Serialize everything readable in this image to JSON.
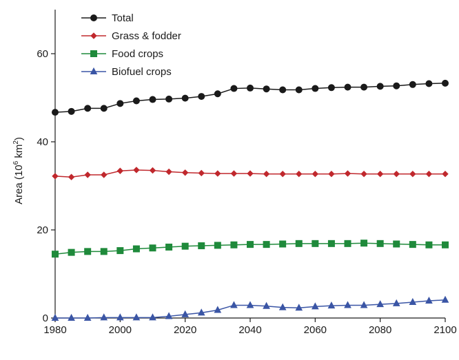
{
  "chart_data": {
    "type": "line",
    "title": "",
    "xlabel": "",
    "ylabel": {
      "prefix": "Area (10",
      "sup1": "6",
      "mid": " km",
      "sup2": "2",
      "suffix": ")"
    },
    "xlim": [
      1980,
      2100
    ],
    "ylim": [
      0,
      70
    ],
    "xticks": [
      "1980",
      "2000",
      "2020",
      "2040",
      "2060",
      "2080",
      "2100"
    ],
    "yticks": [
      "0",
      "20",
      "40",
      "60"
    ],
    "grid": false,
    "legend_position": "top-left",
    "x": [
      1980,
      1985,
      1990,
      1995,
      2000,
      2005,
      2010,
      2015,
      2020,
      2025,
      2030,
      2035,
      2040,
      2045,
      2050,
      2055,
      2060,
      2065,
      2070,
      2075,
      2080,
      2085,
      2090,
      2095,
      2100
    ],
    "series": [
      {
        "name": "Total",
        "color": "#1a1a1a",
        "marker": "circle",
        "values": [
          46.7,
          46.9,
          47.6,
          47.6,
          48.7,
          49.3,
          49.6,
          49.7,
          49.9,
          50.3,
          50.9,
          52.1,
          52.2,
          52.0,
          51.8,
          51.8,
          52.1,
          52.3,
          52.4,
          52.4,
          52.6,
          52.7,
          53.0,
          53.2,
          53.3
        ]
      },
      {
        "name": "Grass & fodder",
        "color": "#c0282d",
        "marker": "diamond",
        "values": [
          32.2,
          32.0,
          32.5,
          32.5,
          33.4,
          33.6,
          33.5,
          33.2,
          33.0,
          32.9,
          32.8,
          32.8,
          32.8,
          32.7,
          32.7,
          32.7,
          32.7,
          32.7,
          32.8,
          32.7,
          32.7,
          32.7,
          32.7,
          32.7,
          32.7
        ]
      },
      {
        "name": "Food crops",
        "color": "#1f8a3b",
        "marker": "square",
        "values": [
          14.5,
          14.9,
          15.1,
          15.1,
          15.3,
          15.7,
          15.9,
          16.1,
          16.3,
          16.4,
          16.5,
          16.6,
          16.7,
          16.7,
          16.8,
          16.9,
          16.9,
          16.9,
          16.9,
          17.0,
          16.9,
          16.8,
          16.7,
          16.6,
          16.6
        ]
      },
      {
        "name": "Biofuel crops",
        "color": "#3a55a5",
        "marker": "triangle",
        "values": [
          0.0,
          0.0,
          0.0,
          0.1,
          0.1,
          0.1,
          0.1,
          0.4,
          0.8,
          1.2,
          1.8,
          2.9,
          2.9,
          2.7,
          2.4,
          2.3,
          2.6,
          2.8,
          2.9,
          2.9,
          3.1,
          3.3,
          3.6,
          3.9,
          4.1
        ]
      }
    ]
  }
}
